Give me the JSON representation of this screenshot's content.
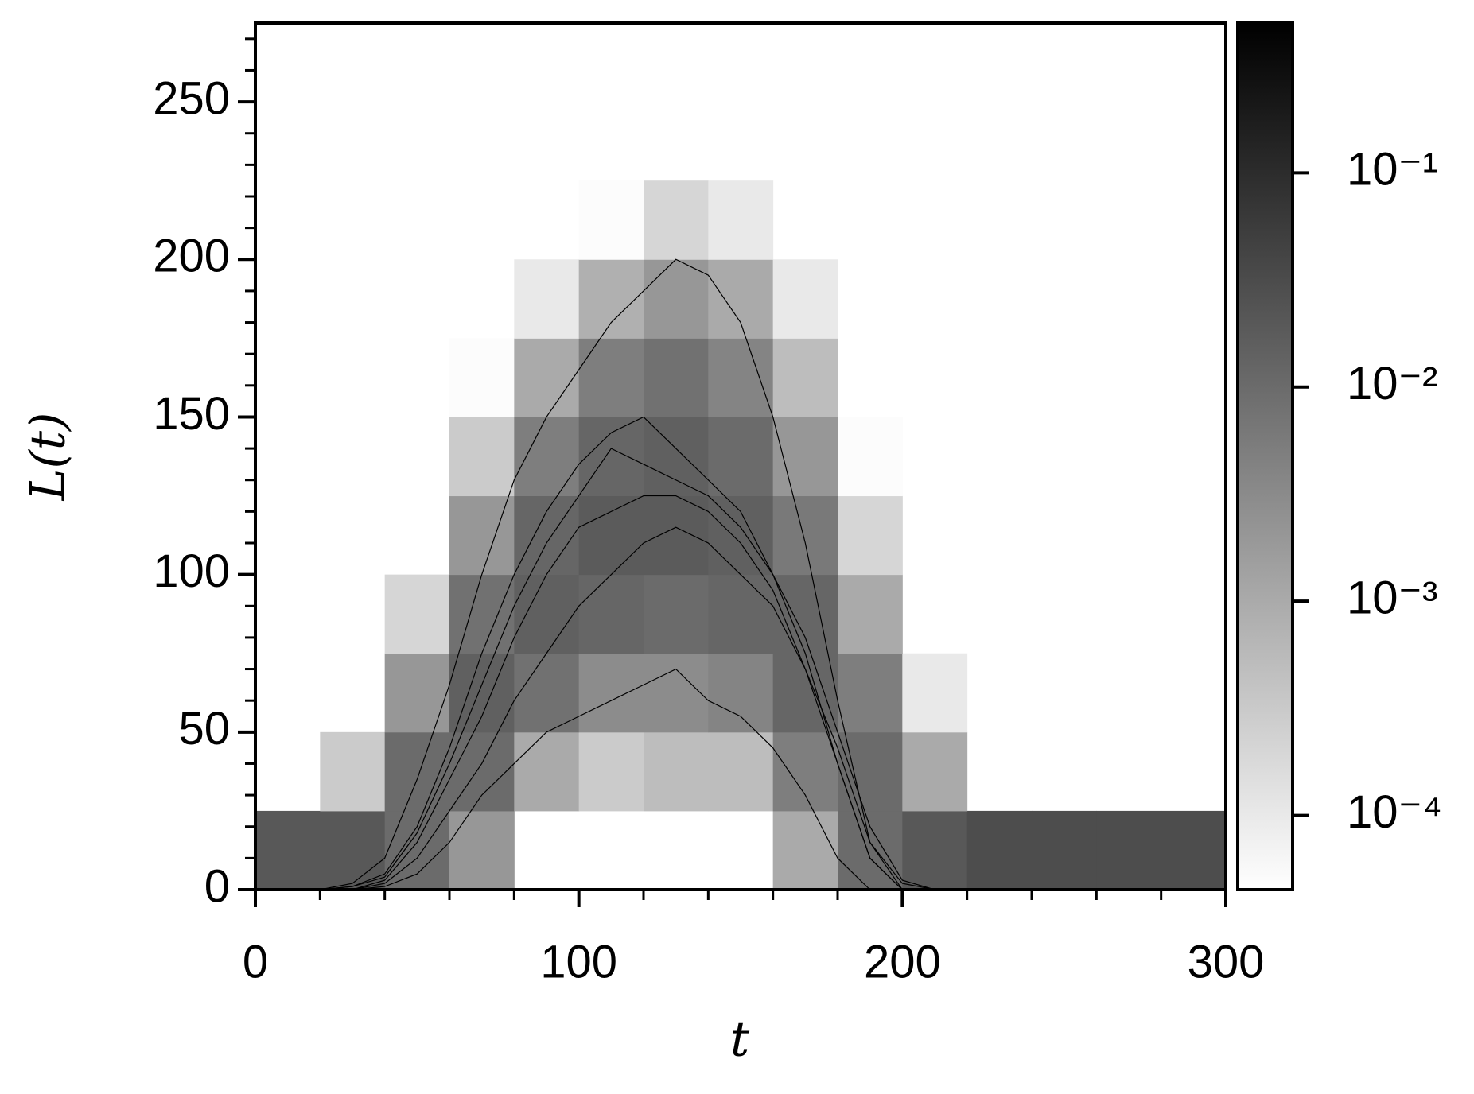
{
  "chart_data": {
    "type": "heatmap",
    "xlabel": "t",
    "ylabel": "L(t)",
    "xlim": [
      0,
      300
    ],
    "ylim": [
      0,
      275
    ],
    "xticks": [
      0,
      100,
      200,
      300
    ],
    "xticks_minor": [
      20,
      40,
      60,
      80,
      120,
      140,
      160,
      180,
      220,
      240,
      260,
      280
    ],
    "yticks": [
      0,
      50,
      100,
      150,
      200,
      250
    ],
    "yticks_minor": [
      10,
      20,
      30,
      40,
      60,
      70,
      80,
      90,
      110,
      120,
      130,
      140,
      160,
      170,
      180,
      190,
      210,
      220,
      230,
      240,
      260,
      270
    ],
    "xbins": [
      0,
      20,
      40,
      60,
      80,
      100,
      120,
      140,
      160,
      180,
      200,
      220,
      240,
      260,
      280,
      300
    ],
    "ybins": [
      0,
      25,
      50,
      75,
      100,
      125,
      150,
      175,
      200,
      225,
      250,
      275
    ],
    "z": [
      [
        0.02,
        0.02,
        0.01,
        0.002,
        null,
        null,
        null,
        null,
        0.001,
        0.01,
        0.02,
        0.03,
        0.03,
        0.03,
        0.03
      ],
      [
        null,
        0.0003,
        0.01,
        0.01,
        0.001,
        0.0003,
        0.0005,
        0.0005,
        0.005,
        0.01,
        0.001,
        null,
        null,
        null,
        null
      ],
      [
        null,
        null,
        0.002,
        0.015,
        0.008,
        0.003,
        0.003,
        0.004,
        0.012,
        0.005,
        0.0001,
        null,
        null,
        null,
        null
      ],
      [
        null,
        null,
        0.0002,
        0.008,
        0.015,
        0.012,
        0.01,
        0.012,
        0.012,
        0.001,
        null,
        null,
        null,
        null,
        null
      ],
      [
        null,
        null,
        null,
        0.002,
        0.012,
        0.018,
        0.018,
        0.015,
        0.006,
        0.0002,
        null,
        null,
        null,
        null,
        null
      ],
      [
        null,
        null,
        null,
        0.0003,
        0.005,
        0.012,
        0.015,
        0.01,
        0.002,
        5e-05,
        null,
        null,
        null,
        null,
        null
      ],
      [
        null,
        null,
        null,
        5e-05,
        0.001,
        0.005,
        0.008,
        0.004,
        0.0005,
        null,
        null,
        null,
        null,
        null,
        null
      ],
      [
        null,
        null,
        null,
        null,
        0.0001,
        0.0008,
        0.002,
        0.001,
        0.0001,
        null,
        null,
        null,
        null,
        null,
        null
      ],
      [
        null,
        null,
        null,
        null,
        null,
        5e-05,
        0.0002,
        0.0001,
        null,
        null,
        null,
        null,
        null,
        null,
        null
      ],
      [
        null,
        null,
        null,
        null,
        null,
        null,
        null,
        null,
        null,
        null,
        null,
        null,
        null,
        null,
        null
      ],
      [
        null,
        null,
        null,
        null,
        null,
        null,
        null,
        null,
        null,
        null,
        null,
        null,
        null,
        null,
        null
      ]
    ],
    "colorbar": {
      "log": true,
      "clim": [
        4.5e-05,
        0.5
      ],
      "ticks": [
        {
          "value": 0.0001,
          "label": "10⁻⁴"
        },
        {
          "value": 0.001,
          "label": "10⁻³"
        },
        {
          "value": 0.01,
          "label": "10⁻²"
        },
        {
          "value": 0.1,
          "label": "10⁻¹"
        }
      ]
    },
    "lines": {
      "color": "#000000",
      "x": [
        0,
        10,
        20,
        30,
        40,
        50,
        60,
        70,
        80,
        90,
        100,
        110,
        120,
        130,
        140,
        150,
        160,
        170,
        180,
        190,
        200,
        210,
        220,
        230,
        240,
        250,
        260,
        270,
        280,
        290,
        300
      ],
      "series": [
        {
          "values": [
            0,
            0,
            0,
            2,
            10,
            35,
            65,
            100,
            130,
            150,
            165,
            180,
            190,
            200,
            195,
            180,
            150,
            110,
            60,
            15,
            0,
            0,
            0,
            0,
            0,
            0,
            0,
            0,
            0,
            0,
            0
          ]
        },
        {
          "values": [
            0,
            0,
            0,
            1,
            5,
            20,
            45,
            75,
            100,
            120,
            135,
            145,
            150,
            140,
            130,
            120,
            100,
            75,
            40,
            10,
            0,
            0,
            0,
            0,
            0,
            0,
            0,
            0,
            0,
            0,
            0
          ]
        },
        {
          "values": [
            0,
            0,
            0,
            0,
            3,
            15,
            35,
            55,
            80,
            100,
            115,
            120,
            125,
            125,
            120,
            110,
            95,
            70,
            40,
            10,
            0,
            0,
            0,
            0,
            0,
            0,
            0,
            0,
            0,
            0,
            0
          ]
        },
        {
          "values": [
            0,
            0,
            0,
            0,
            2,
            10,
            25,
            40,
            60,
            75,
            90,
            100,
            110,
            115,
            110,
            100,
            90,
            70,
            45,
            15,
            2,
            0,
            0,
            0,
            0,
            0,
            0,
            0,
            0,
            0,
            0
          ]
        },
        {
          "values": [
            0,
            0,
            0,
            0,
            1,
            5,
            15,
            30,
            40,
            50,
            55,
            60,
            65,
            70,
            60,
            55,
            45,
            30,
            10,
            0,
            0,
            0,
            0,
            0,
            0,
            0,
            0,
            0,
            0,
            0,
            0
          ]
        },
        {
          "values": [
            0,
            0,
            0,
            1,
            4,
            18,
            40,
            65,
            90,
            110,
            125,
            140,
            135,
            130,
            125,
            115,
            100,
            80,
            50,
            20,
            3,
            0,
            0,
            0,
            0,
            0,
            0,
            0,
            0,
            0,
            0
          ]
        }
      ]
    }
  }
}
